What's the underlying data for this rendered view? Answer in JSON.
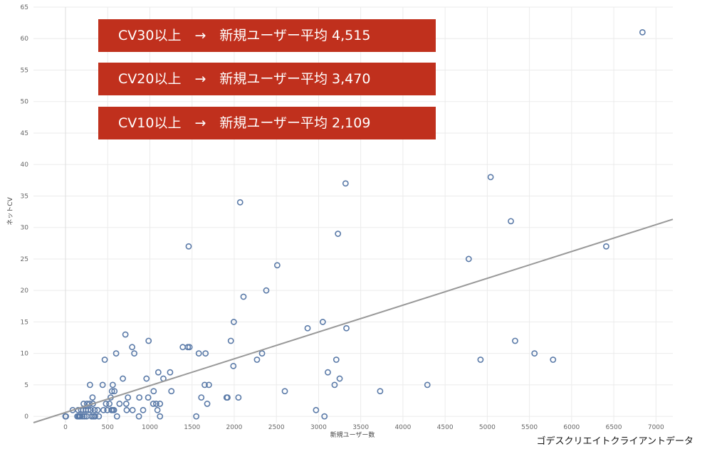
{
  "banners": [
    {
      "text": "CV30以上　→　新規ユーザー平均 4,515"
    },
    {
      "text": "CV20以上　→　新規ユーザー平均 3,470"
    },
    {
      "text": "CV10以上　→　新規ユーザー平均 2,109"
    }
  ],
  "source_note": "ゴデスクリエイトクライアントデータ",
  "colors": {
    "banner": "#c0301d",
    "marker": "#5a7aa8",
    "trend": "#999999",
    "grid": "#ebebeb"
  },
  "chart_data": {
    "type": "scatter",
    "title": "",
    "xlabel": "新規ユーザー数",
    "ylabel": "ネットCV",
    "xlim": [
      -380,
      7200
    ],
    "ylim": [
      -1,
      65
    ],
    "xticks": [
      "0",
      "500",
      "1000",
      "1500",
      "2000",
      "2500",
      "3000",
      "3500",
      "4000",
      "4500",
      "5000",
      "5500",
      "6000",
      "6500",
      "7000"
    ],
    "xtick_values": [
      0,
      500,
      1000,
      1500,
      2000,
      2500,
      3000,
      3500,
      4000,
      4500,
      5000,
      5500,
      6000,
      6500,
      7000
    ],
    "yticks": [
      "0",
      "5",
      "10",
      "15",
      "20",
      "25",
      "30",
      "35",
      "40",
      "45",
      "50",
      "55",
      "60",
      "65"
    ],
    "ytick_values": [
      0,
      5,
      10,
      15,
      20,
      25,
      30,
      35,
      40,
      45,
      50,
      55,
      60,
      65
    ],
    "grid": true,
    "trendline": {
      "x": [
        -380,
        7200
      ],
      "y": [
        -1.0,
        31.3
      ]
    },
    "points": [
      [
        0,
        0
      ],
      [
        0,
        0
      ],
      [
        5,
        0
      ],
      [
        85,
        1
      ],
      [
        140,
        0
      ],
      [
        150,
        1
      ],
      [
        155,
        0
      ],
      [
        165,
        0
      ],
      [
        175,
        0
      ],
      [
        185,
        1
      ],
      [
        200,
        0
      ],
      [
        210,
        1
      ],
      [
        215,
        2
      ],
      [
        225,
        0
      ],
      [
        240,
        1
      ],
      [
        250,
        0
      ],
      [
        255,
        2
      ],
      [
        270,
        1
      ],
      [
        285,
        2
      ],
      [
        290,
        5
      ],
      [
        300,
        1
      ],
      [
        310,
        0
      ],
      [
        320,
        3
      ],
      [
        325,
        2
      ],
      [
        330,
        0
      ],
      [
        345,
        1
      ],
      [
        350,
        0
      ],
      [
        380,
        1
      ],
      [
        395,
        0
      ],
      [
        440,
        5
      ],
      [
        450,
        1
      ],
      [
        465,
        9
      ],
      [
        480,
        2
      ],
      [
        495,
        1
      ],
      [
        520,
        2
      ],
      [
        535,
        3
      ],
      [
        545,
        1
      ],
      [
        550,
        4
      ],
      [
        560,
        5
      ],
      [
        560,
        1
      ],
      [
        575,
        1
      ],
      [
        580,
        4
      ],
      [
        600,
        10
      ],
      [
        610,
        0
      ],
      [
        640,
        2
      ],
      [
        680,
        6
      ],
      [
        710,
        13
      ],
      [
        720,
        2
      ],
      [
        725,
        1
      ],
      [
        740,
        3
      ],
      [
        790,
        11
      ],
      [
        795,
        1
      ],
      [
        815,
        10
      ],
      [
        870,
        0
      ],
      [
        875,
        3
      ],
      [
        920,
        1
      ],
      [
        960,
        6
      ],
      [
        980,
        3
      ],
      [
        985,
        12
      ],
      [
        1040,
        2
      ],
      [
        1045,
        4
      ],
      [
        1075,
        2
      ],
      [
        1090,
        1
      ],
      [
        1100,
        7
      ],
      [
        1120,
        0
      ],
      [
        1120,
        2
      ],
      [
        1160,
        6
      ],
      [
        1240,
        7
      ],
      [
        1255,
        4
      ],
      [
        1390,
        11
      ],
      [
        1450,
        11
      ],
      [
        1460,
        27
      ],
      [
        1470,
        11
      ],
      [
        1550,
        0
      ],
      [
        1580,
        10
      ],
      [
        1610,
        3
      ],
      [
        1650,
        5
      ],
      [
        1660,
        10
      ],
      [
        1680,
        2
      ],
      [
        1700,
        5
      ],
      [
        1910,
        3
      ],
      [
        1920,
        3
      ],
      [
        1960,
        12
      ],
      [
        1990,
        8
      ],
      [
        1995,
        15
      ],
      [
        2050,
        3
      ],
      [
        2070,
        34
      ],
      [
        2110,
        19
      ],
      [
        2270,
        9
      ],
      [
        2330,
        10
      ],
      [
        2380,
        20
      ],
      [
        2510,
        24
      ],
      [
        2600,
        4
      ],
      [
        2870,
        14
      ],
      [
        2970,
        1
      ],
      [
        3050,
        15
      ],
      [
        3070,
        0
      ],
      [
        3110,
        7
      ],
      [
        3190,
        5
      ],
      [
        3210,
        9
      ],
      [
        3230,
        29
      ],
      [
        3250,
        6
      ],
      [
        3320,
        37
      ],
      [
        3330,
        14
      ],
      [
        3730,
        4
      ],
      [
        4290,
        5
      ],
      [
        4780,
        25
      ],
      [
        4920,
        9
      ],
      [
        5040,
        38
      ],
      [
        5280,
        31
      ],
      [
        5330,
        12
      ],
      [
        5560,
        10
      ],
      [
        5780,
        9
      ],
      [
        6410,
        27
      ],
      [
        6840,
        61
      ]
    ]
  }
}
